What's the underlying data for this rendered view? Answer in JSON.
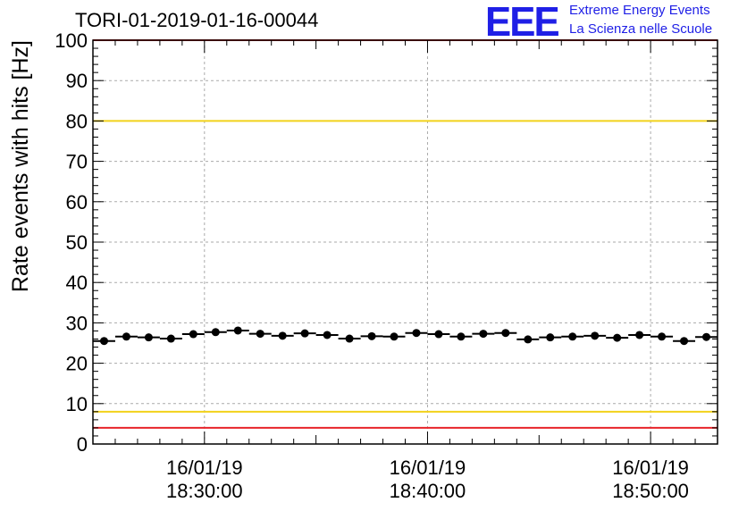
{
  "header": {
    "title": "TORI-01-2019-01-16-00044",
    "logo_text": "EEE",
    "logo_line1": "Extreme Energy Events",
    "logo_line2": "La Scienza nelle Scuole"
  },
  "colors": {
    "red_line": "#e8242a",
    "yellow_line": "#f2d21b",
    "logo_blue": "#1f1fe6",
    "grid": "#aaaaaa"
  },
  "chart_data": {
    "type": "scatter",
    "title": "TORI-01-2019-01-16-00044",
    "ylabel": "Rate events with hits [Hz]",
    "xlabel": "",
    "ylim": [
      0,
      100
    ],
    "x_range_minutes": [
      -5,
      23
    ],
    "y_ticks": [
      0,
      10,
      20,
      30,
      40,
      50,
      60,
      70,
      80,
      90,
      100
    ],
    "x_ticks": [
      {
        "minute": 0,
        "date": "16/01/19",
        "time": "18:30:00"
      },
      {
        "minute": 10,
        "date": "16/01/19",
        "time": "18:40:00"
      },
      {
        "minute": 20,
        "date": "16/01/19",
        "time": "18:50:00"
      }
    ],
    "reference_lines": [
      {
        "value": 100,
        "color": "red"
      },
      {
        "value": 80,
        "color": "yellow"
      },
      {
        "value": 8,
        "color": "yellow"
      },
      {
        "value": 4,
        "color": "red"
      }
    ],
    "grid": true,
    "series": [
      {
        "x_minutes": [
          -4.5,
          -3.5,
          -2.5,
          -1.5,
          -0.5,
          0.5,
          1.5,
          2.5,
          3.5,
          4.5,
          5.5,
          6.5,
          7.5,
          8.5,
          9.5,
          10.5,
          11.5,
          12.5,
          13.5,
          14.5,
          15.5,
          16.5,
          17.5,
          18.5,
          19.5,
          20.5,
          21.5,
          22.5
        ],
        "values": [
          25.5,
          26.6,
          26.4,
          26.1,
          27.2,
          27.7,
          28.1,
          27.3,
          26.8,
          27.4,
          27.0,
          26.1,
          26.7,
          26.6,
          27.5,
          27.2,
          26.6,
          27.3,
          27.5,
          25.9,
          26.4,
          26.6,
          26.8,
          26.3,
          27.0,
          26.6,
          25.5,
          26.5
        ]
      }
    ]
  }
}
